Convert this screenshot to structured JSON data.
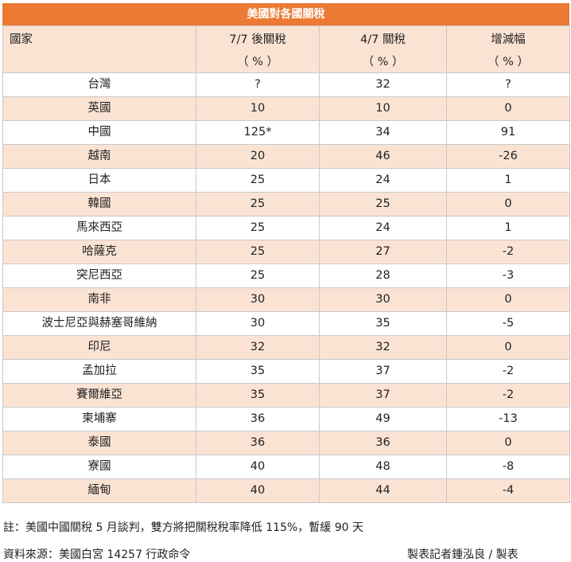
{
  "title": "美國對各國關稅",
  "header": {
    "country": "國家",
    "col2_line1": "7/7 後關稅",
    "col3_line1": "4/7 關稅",
    "col4_line1": "增減幅",
    "unit": "（ % ）"
  },
  "rows": [
    {
      "country": "台灣",
      "after": "?",
      "apr": "32",
      "change": "?"
    },
    {
      "country": "英國",
      "after": "10",
      "apr": "10",
      "change": "0"
    },
    {
      "country": "中國",
      "after": "125*",
      "apr": "34",
      "change": "91"
    },
    {
      "country": "越南",
      "after": "20",
      "apr": "46",
      "change": "-26"
    },
    {
      "country": "日本",
      "after": "25",
      "apr": "24",
      "change": "1"
    },
    {
      "country": "韓國",
      "after": "25",
      "apr": "25",
      "change": "0"
    },
    {
      "country": "馬來西亞",
      "after": "25",
      "apr": "24",
      "change": "1"
    },
    {
      "country": "哈薩克",
      "after": "25",
      "apr": "27",
      "change": "-2"
    },
    {
      "country": "突尼西亞",
      "after": "25",
      "apr": "28",
      "change": "-3"
    },
    {
      "country": "南非",
      "after": "30",
      "apr": "30",
      "change": "0"
    },
    {
      "country": "波士尼亞與赫塞哥維納",
      "after": "30",
      "apr": "35",
      "change": "-5"
    },
    {
      "country": "印尼",
      "after": "32",
      "apr": "32",
      "change": "0"
    },
    {
      "country": "孟加拉",
      "after": "35",
      "apr": "37",
      "change": "-2"
    },
    {
      "country": "賽爾維亞",
      "after": "35",
      "apr": "37",
      "change": "-2"
    },
    {
      "country": "柬埔寨",
      "after": "36",
      "apr": "49",
      "change": "-13"
    },
    {
      "country": "泰國",
      "after": "36",
      "apr": "36",
      "change": "0"
    },
    {
      "country": "寮國",
      "after": "40",
      "apr": "48",
      "change": "-8"
    },
    {
      "country": "緬甸",
      "after": "40",
      "apr": "44",
      "change": "-4"
    }
  ],
  "footer": {
    "note": "註：美國中國關稅 5 月談判，雙方將把關稅稅率降低 115%，暫緩 90 天",
    "source": "資料來源：美國白宮 14257 行政命令",
    "credit": "製表記者鍾泓良 / 製表"
  },
  "colors": {
    "title_bg": "#ec7a35",
    "stripe": "#fbe3d4"
  }
}
